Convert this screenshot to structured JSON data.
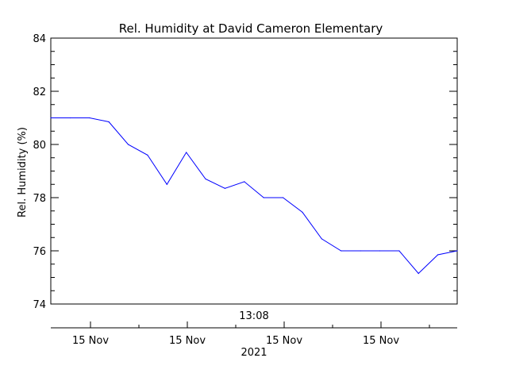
{
  "chart_data": {
    "type": "line",
    "title": "Rel. Humidity at David Cameron Elementary",
    "ylabel": "Rel. Humidity (%)",
    "xlabel_top": "13:08",
    "xlabel_year": "2021",
    "ylim": [
      74,
      84
    ],
    "y_ticks": [
      "74",
      "76",
      "78",
      "80",
      "82",
      "84"
    ],
    "x_tick_labels": [
      "15 Nov",
      "15 Nov",
      "15 Nov",
      "15 Nov"
    ],
    "grid": false,
    "colors": {
      "series": "#0000ff",
      "axes": "#000000",
      "background": "#ffffff"
    },
    "series": [
      {
        "x": [
          0,
          1,
          2,
          3,
          4,
          5,
          6,
          7,
          8,
          9,
          10,
          11,
          12,
          13,
          14,
          15,
          16,
          17,
          18,
          19,
          20,
          21
        ],
        "values": [
          81.0,
          81.0,
          81.0,
          80.85,
          80.0,
          79.6,
          78.5,
          79.7,
          78.7,
          78.35,
          78.6,
          78.0,
          78.0,
          77.45,
          76.45,
          76.0,
          76.0,
          76.0,
          76.0,
          75.15,
          75.85,
          76.0
        ]
      }
    ]
  }
}
